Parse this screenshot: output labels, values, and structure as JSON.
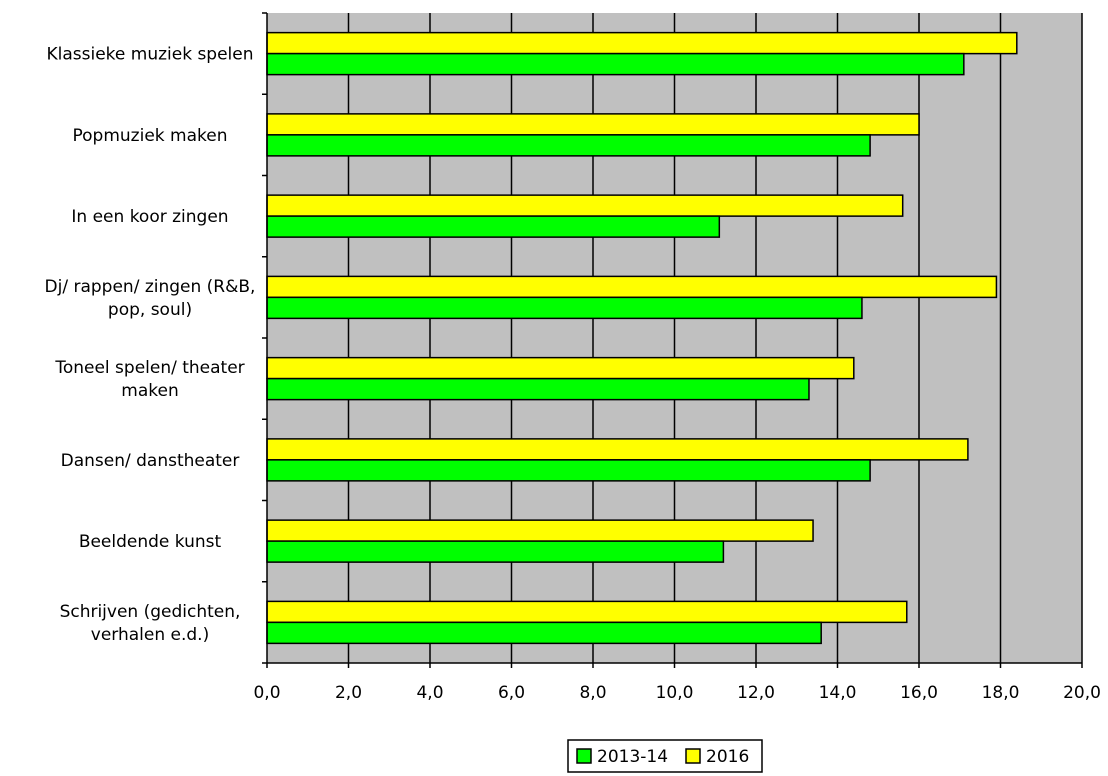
{
  "chart_data": {
    "type": "bar",
    "orientation": "horizontal",
    "categories": [
      "Klassieke muziek spelen",
      "Popmuziek maken",
      "In een koor zingen",
      "Dj/ rappen/ zingen (R&B,|pop, soul)",
      "Toneel spelen/ theater|maken",
      "Dansen/ danstheater",
      "Beeldende kunst",
      "Schrijven (gedichten,|verhalen e.d.)"
    ],
    "series": [
      {
        "name": "2016",
        "color": "#ffff00",
        "values": [
          18.4,
          16.0,
          15.6,
          17.9,
          14.4,
          17.2,
          13.4,
          15.7
        ]
      },
      {
        "name": "2013-14",
        "color": "#00ff00",
        "values": [
          17.1,
          14.8,
          11.1,
          14.6,
          13.3,
          14.8,
          11.2,
          13.6
        ]
      }
    ],
    "xlim": [
      0,
      20
    ],
    "xticks": [
      "0,0",
      "2,0",
      "4,0",
      "6,0",
      "8,0",
      "10,0",
      "12,0",
      "14,0",
      "16,0",
      "18,0",
      "20,0"
    ],
    "plot_background": "#c0c0c0",
    "grid": true,
    "legend": {
      "placement": "bottom-center",
      "entries": [
        {
          "name": "2013-14",
          "color": "#00ff00"
        },
        {
          "name": "2016",
          "color": "#ffff00"
        }
      ]
    }
  }
}
